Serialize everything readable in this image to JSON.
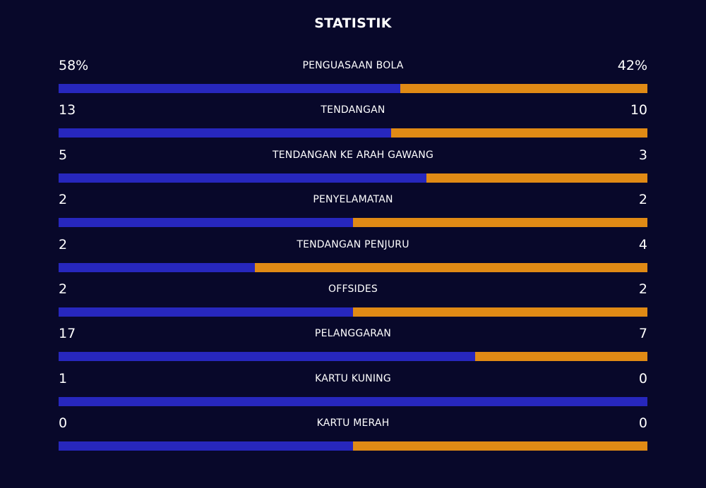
{
  "header": {
    "title": "STATISTIK"
  },
  "colors": {
    "background": "#08082a",
    "home_bar": "#2727bd",
    "away_bar": "#e08a15"
  },
  "stats": [
    {
      "label": "PENGUASAAN BOLA",
      "home": "58%",
      "away": "42%",
      "home_share": 0.58
    },
    {
      "label": "TENDANGAN",
      "home": "13",
      "away": "10",
      "home_share": 0.565
    },
    {
      "label": "TENDANGAN KE ARAH GAWANG",
      "home": "5",
      "away": "3",
      "home_share": 0.625
    },
    {
      "label": "PENYELAMATAN",
      "home": "2",
      "away": "2",
      "home_share": 0.5
    },
    {
      "label": "TENDANGAN PENJURU",
      "home": "2",
      "away": "4",
      "home_share": 0.333
    },
    {
      "label": "OFFSIDES",
      "home": "2",
      "away": "2",
      "home_share": 0.5
    },
    {
      "label": "PELANGGARAN",
      "home": "17",
      "away": "7",
      "home_share": 0.708
    },
    {
      "label": "KARTU KUNING",
      "home": "1",
      "away": "0",
      "home_share": 1.0
    },
    {
      "label": "KARTU MERAH",
      "home": "0",
      "away": "0",
      "home_share": 0.5
    }
  ]
}
